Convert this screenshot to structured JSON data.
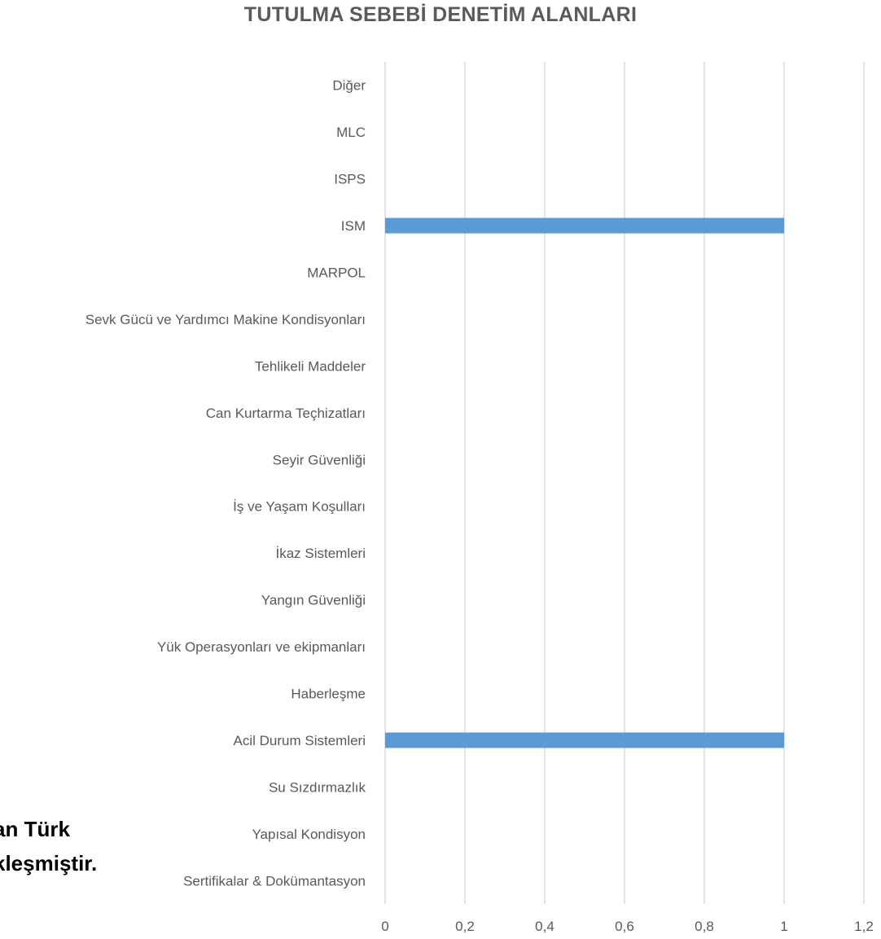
{
  "background_text": {
    "line1": "an Türk",
    "line2": "kleşmiştir."
  },
  "chart_data": {
    "type": "bar",
    "orientation": "horizontal",
    "title": "TUTULMA SEBEBİ DENETİM ALANLARI",
    "categories": [
      "Sertifikalar & Dokümantasyon",
      "Yapısal Kondisyon",
      "Su Sızdırmazlık",
      "Acil Durum Sistemleri",
      "Haberleşme",
      "Yük Operasyonları ve ekipmanları",
      "Yangın Güvenliği",
      "İkaz Sistemleri",
      "İş ve Yaşam Koşulları",
      "Seyir Güvenliği",
      "Can Kurtarma Teçhizatları",
      "Tehlikeli Maddeler",
      "Sevk Gücü ve Yardımcı Makine Kondisyonları",
      "MARPOL",
      "ISM",
      "ISPS",
      "MLC",
      "Diğer"
    ],
    "values": [
      0,
      0,
      0,
      1,
      0,
      0,
      0,
      0,
      0,
      0,
      0,
      0,
      0,
      0,
      1,
      0,
      0,
      0
    ],
    "xlim": [
      0,
      1.2
    ],
    "xticks": [
      "0",
      "0,2",
      "0,4",
      "0,6",
      "0,8",
      "1",
      "1,2"
    ],
    "xlabel": "",
    "ylabel": "",
    "grid": "vertical",
    "bar_color": "#5b9bd5",
    "grid_color": "#d9d9d9"
  }
}
